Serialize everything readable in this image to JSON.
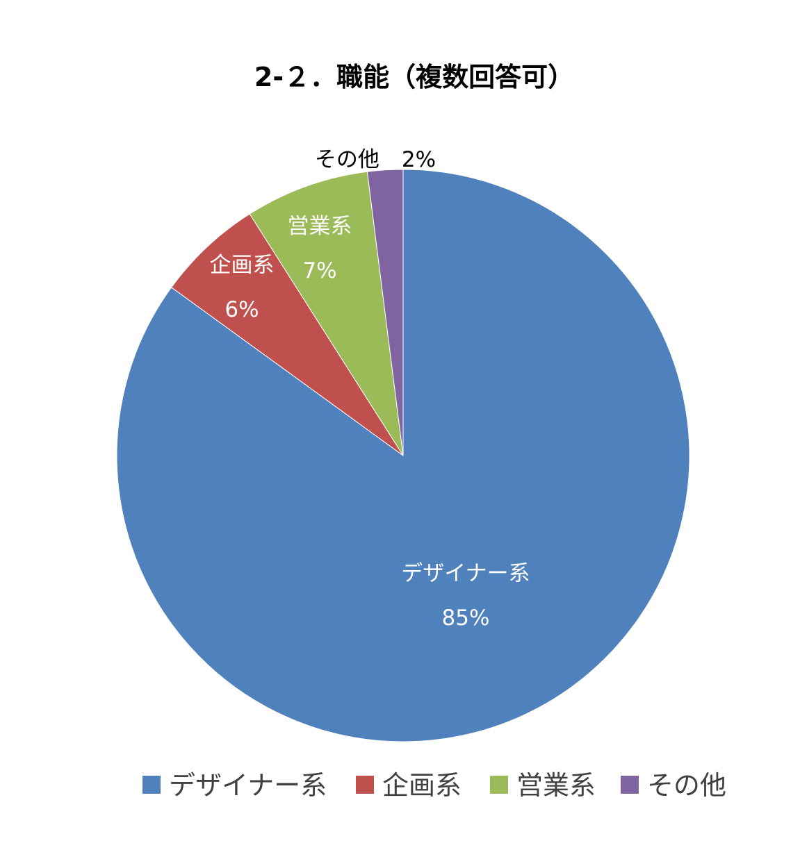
{
  "chart_data": {
    "type": "pie",
    "title": "2-２．職能（複数回答可）",
    "categories": [
      "デザイナー系",
      "企画系",
      "営業系",
      "その他"
    ],
    "values": [
      85,
      6,
      7,
      2
    ],
    "value_labels": [
      "85%",
      "6%",
      "7%",
      "2%"
    ],
    "colors": [
      "#4F81BD",
      "#C0504D",
      "#9BBB59",
      "#8064A2"
    ],
    "legend_position": "bottom",
    "start_angle_deg": 0,
    "direction": "clockwise",
    "slice_order": [
      0,
      1,
      2,
      3
    ]
  }
}
